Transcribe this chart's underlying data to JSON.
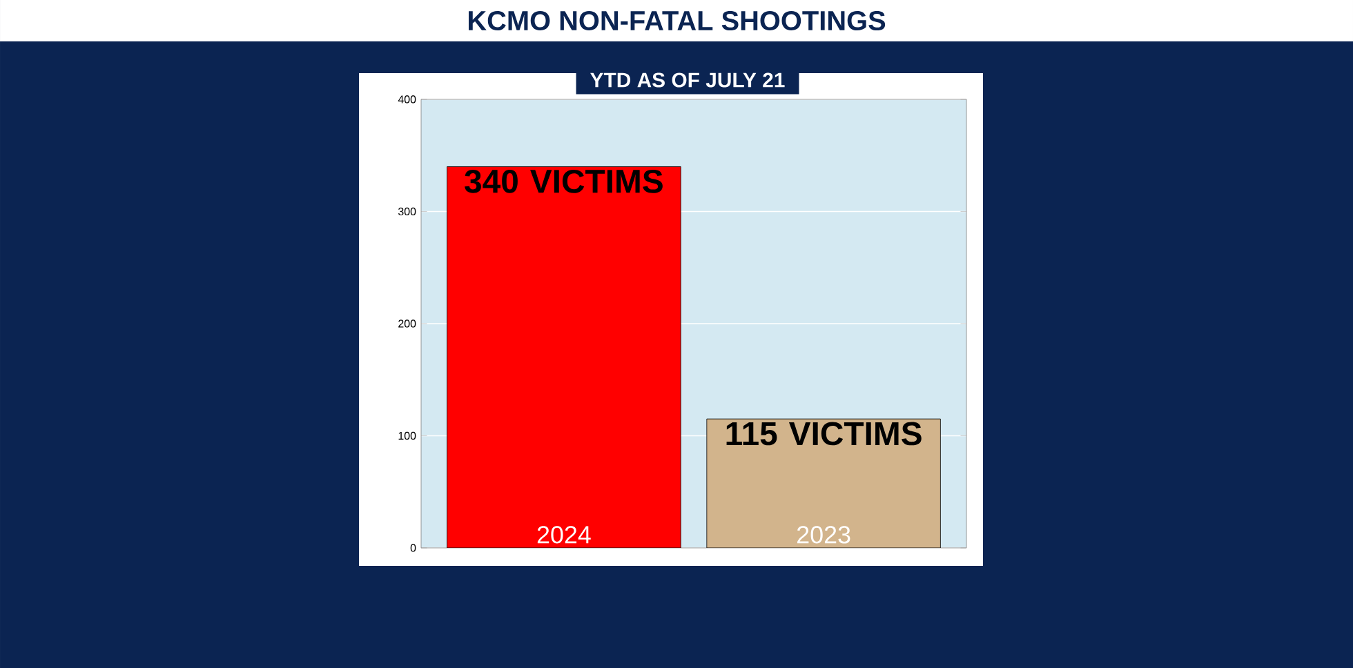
{
  "chart_data": {
    "type": "bar",
    "title": "KCMO NON-FATAL SHOOTINGS",
    "subtitle": "YTD AS OF JULY 21",
    "categories": [
      "2024",
      "2023"
    ],
    "values": [
      340,
      115
    ],
    "colors": [
      "#ff0000",
      "#d2b48c"
    ],
    "value_labels": [
      "340 VICTIMS",
      "115 VICTIMS"
    ],
    "ylim": [
      0,
      400
    ],
    "yticks": [
      0,
      100,
      200,
      300,
      400
    ],
    "grid": "y"
  }
}
